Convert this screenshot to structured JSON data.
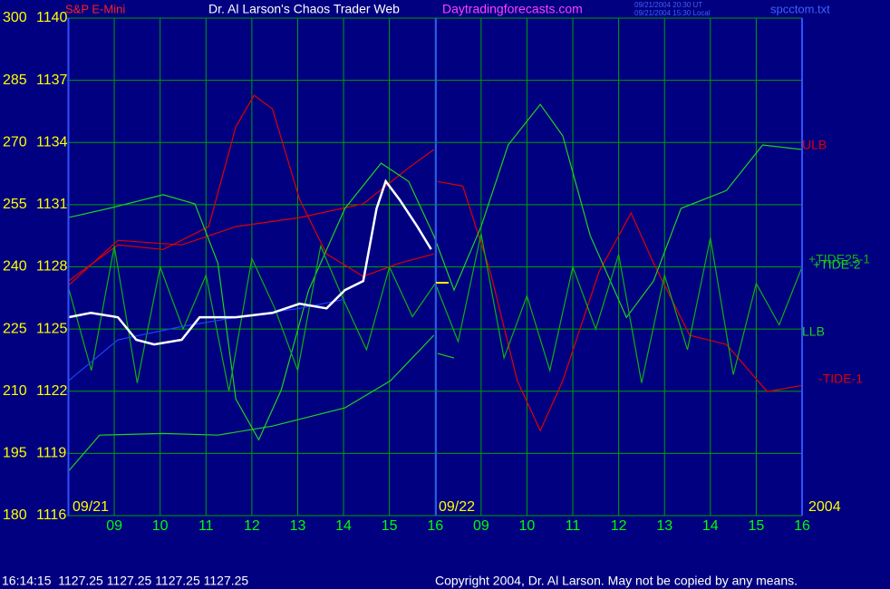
{
  "chart_data": {
    "type": "line",
    "source": "S&P E-Mini",
    "title": "Dr. Al Larson's Chaos Trader Web",
    "website": "Daytradingforecasts.com",
    "timestamps": [
      "09/21/2004 20:30 UT",
      "09/21/2004 15:30 Local"
    ],
    "file": "spcctom.txt",
    "status": "16:14:15  1127.25 1127.25 1127.25 1127.25",
    "copyright": "Copyright 2004, Dr. Al Larson. May not be copied by any means.",
    "dates": [
      "09/21",
      "09/22",
      "2004"
    ],
    "xlim": [
      -1,
      15
    ],
    "xticks": [
      {
        "value": 0,
        "label": "09"
      },
      {
        "value": 1,
        "label": "10"
      },
      {
        "value": 2,
        "label": "11"
      },
      {
        "value": 3,
        "label": "12"
      },
      {
        "value": 4,
        "label": "13"
      },
      {
        "value": 5,
        "label": "14"
      },
      {
        "value": 6,
        "label": "15"
      },
      {
        "value": 7,
        "label": "16"
      },
      {
        "value": 8,
        "label": "09"
      },
      {
        "value": 9,
        "label": "10"
      },
      {
        "value": 10,
        "label": "11"
      },
      {
        "value": 11,
        "label": "12"
      },
      {
        "value": 12,
        "label": "13"
      },
      {
        "value": 13,
        "label": "14"
      },
      {
        "value": 14,
        "label": "15"
      },
      {
        "value": 15,
        "label": "16"
      }
    ],
    "ylim": [
      180,
      300
    ],
    "yticks": [
      300,
      285,
      270,
      255,
      240,
      225,
      210,
      195,
      180
    ],
    "y2lim": [
      1116,
      1140
    ],
    "y2ticks": [
      1140,
      1137,
      1134,
      1131,
      1128,
      1125,
      1122,
      1119,
      1116
    ],
    "grid": true,
    "series": [
      {
        "name": "-TIDE-1",
        "color": "#e00000",
        "x": [
          -1,
          0.08,
          1.07,
          2.06,
          2.65,
          3.05,
          3.45,
          4.04,
          4.63,
          5.43,
          6.22,
          6.97,
          7.0,
          7.05,
          7.6,
          8.2,
          8.79,
          9.29,
          9.78,
          10.57,
          11.27,
          11.76,
          12.55,
          13.35,
          14.24,
          15.0
        ],
        "values": [
          236.6,
          245.3,
          244.2,
          249.7,
          273.8,
          281.4,
          278.1,
          256.3,
          243.1,
          237.7,
          240.9,
          243.1,
          null,
          260.6,
          259.5,
          238.8,
          212.5,
          200.5,
          212.5,
          238.8,
          253.0,
          240.9,
          223.5,
          221.3,
          209.9,
          211.4
        ]
      },
      {
        "name": "ULB",
        "color": "#e00000",
        "x": [
          -1,
          0.08,
          1.47,
          2.65,
          4.04,
          5.43,
          6.42,
          6.97
        ],
        "values": [
          235.5,
          246.4,
          245.3,
          249.7,
          251.9,
          255.2,
          263.9,
          268.3
        ]
      },
      {
        "name": "+TIDE-2",
        "color": "#20d020",
        "x": [
          -1,
          -0.12,
          1.07,
          1.76,
          2.26,
          2.65,
          3.15,
          3.64,
          4.24,
          5.03,
          5.82,
          6.42,
          6.97,
          7.41,
          8.0,
          8.59,
          9.29,
          9.78,
          10.38,
          11.17,
          11.76,
          12.36,
          13.35,
          14.14,
          15.0
        ],
        "values": [
          251.9,
          254.1,
          257.4,
          255.2,
          240.9,
          208.1,
          198.3,
          210.3,
          234.4,
          254.1,
          265.0,
          260.6,
          247.5,
          234.4,
          249.7,
          269.4,
          279.2,
          271.6,
          247.5,
          227.8,
          236.6,
          254.1,
          258.4,
          269.4,
          268.3
        ]
      },
      {
        "name": "LLB",
        "color": "#20d020",
        "x": [
          -1,
          -0.32,
          1.07,
          2.26,
          3.45,
          5.03,
          6.02,
          6.97,
          7.0,
          7.05,
          7.41
        ],
        "values": [
          190.7,
          199.4,
          199.8,
          199.4,
          201.6,
          206.0,
          212.5,
          223.5,
          null,
          219.1,
          218.0
        ]
      },
      {
        "name": "+TIDE25-1",
        "color": "#10b010",
        "x": [
          -1,
          -0.5,
          0,
          0.5,
          1,
          1.5,
          2,
          2.5,
          3,
          3.5,
          4,
          4.5,
          5,
          5.5,
          6,
          6.5,
          7,
          7.5,
          8,
          8.5,
          9,
          9.5,
          10,
          10.5,
          11,
          11.5,
          12,
          12.5,
          13,
          13.5,
          14,
          14.5,
          15
        ],
        "values": [
          235,
          215,
          245,
          212,
          240,
          225,
          238,
          210,
          242,
          230,
          215,
          245,
          232,
          220,
          240,
          228,
          236,
          222,
          248,
          218,
          233,
          215,
          240,
          225,
          243,
          212,
          238,
          220,
          247,
          214,
          236,
          226,
          240
        ]
      },
      {
        "color": "#2040ff",
        "x": [
          -1,
          0.08,
          1.47,
          2.65,
          4.04,
          5.03
        ],
        "values": [
          212.5,
          222.4,
          225.6,
          227.8,
          230.0,
          232.2
        ]
      },
      {
        "color": "#ffffff",
        "axis": "y2",
        "x": [
          -1,
          -0.51,
          0.08,
          0.48,
          0.87,
          1.47,
          1.86,
          2.65,
          3.45,
          4.04,
          4.63,
          5.03,
          5.43,
          5.72,
          5.92,
          6.22,
          6.61,
          6.91
        ],
        "values": [
          1125.57,
          1125.78,
          1125.57,
          1124.48,
          1124.26,
          1124.48,
          1125.57,
          1125.57,
          1125.78,
          1126.22,
          1126.0,
          1126.88,
          1127.32,
          1130.81,
          1132.13,
          1131.25,
          1129.94,
          1128.85
        ]
      }
    ]
  }
}
